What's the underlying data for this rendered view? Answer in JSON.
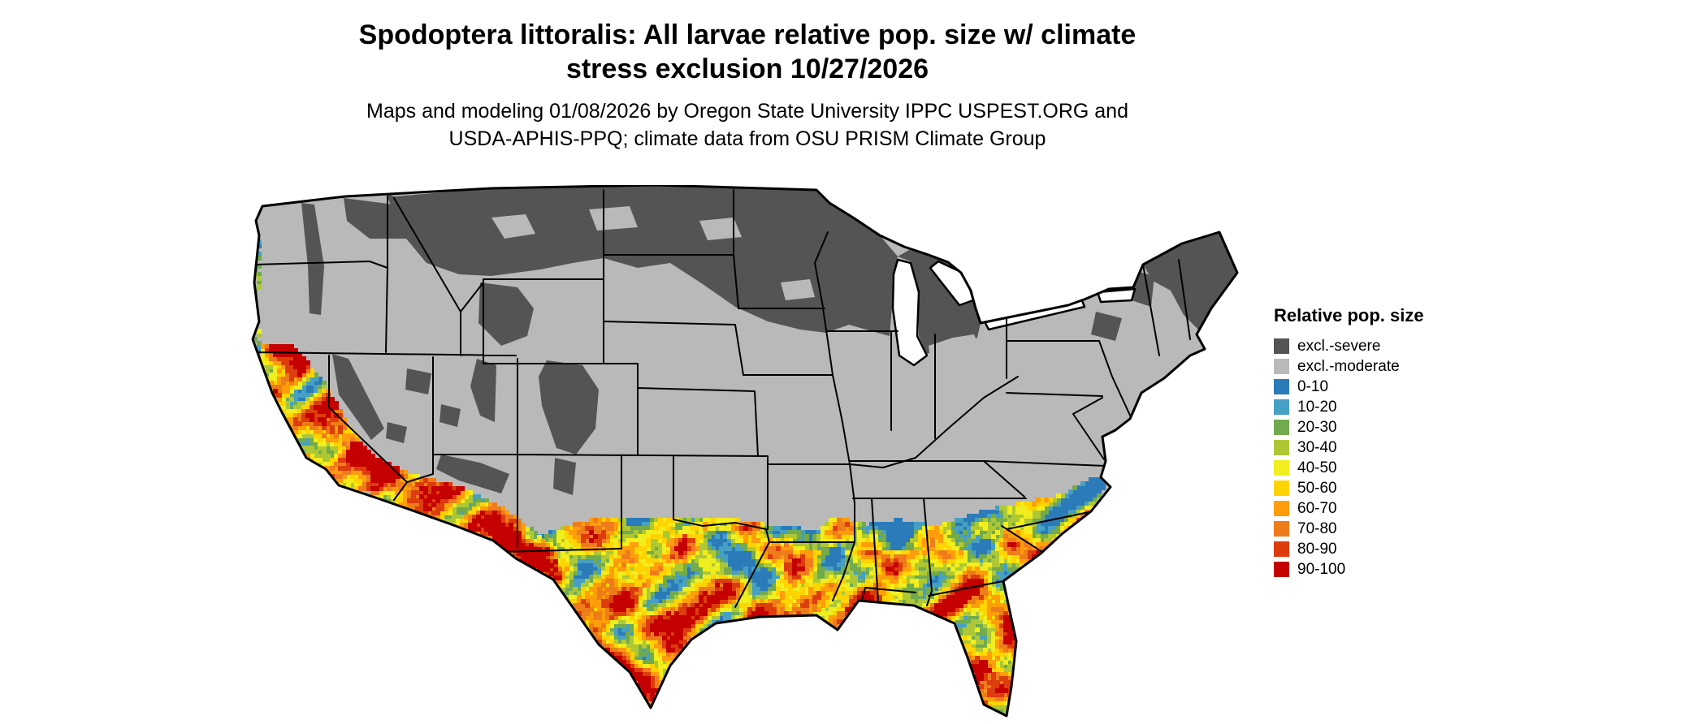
{
  "title": {
    "line1": "Spodoptera littoralis: All larvae relative pop. size w/ climate",
    "line2": "stress exclusion 10/27/2026"
  },
  "subtitle": {
    "line1": "Maps and modeling 01/08/2026 by Oregon State University IPPC USPEST.ORG and",
    "line2": "USDA-APHIS-PPQ; climate data from OSU PRISM Climate Group"
  },
  "legend": {
    "title": "Relative pop. size",
    "items": [
      {
        "label": "excl.-severe",
        "color": "#545454"
      },
      {
        "label": "excl.-moderate",
        "color": "#b9b9b9"
      },
      {
        "label": "0-10",
        "color": "#2b7bb9"
      },
      {
        "label": "10-20",
        "color": "#45a0c4"
      },
      {
        "label": "20-30",
        "color": "#71ab4e"
      },
      {
        "label": "30-40",
        "color": "#aec835"
      },
      {
        "label": "40-50",
        "color": "#f0ee1e"
      },
      {
        "label": "50-60",
        "color": "#ffd400"
      },
      {
        "label": "60-70",
        "color": "#ff9d0a"
      },
      {
        "label": "70-80",
        "color": "#ef7c1a"
      },
      {
        "label": "80-90",
        "color": "#dd3d0c"
      },
      {
        "label": "90-100",
        "color": "#c40000"
      }
    ]
  },
  "map": {
    "region": "Continental United States"
  }
}
